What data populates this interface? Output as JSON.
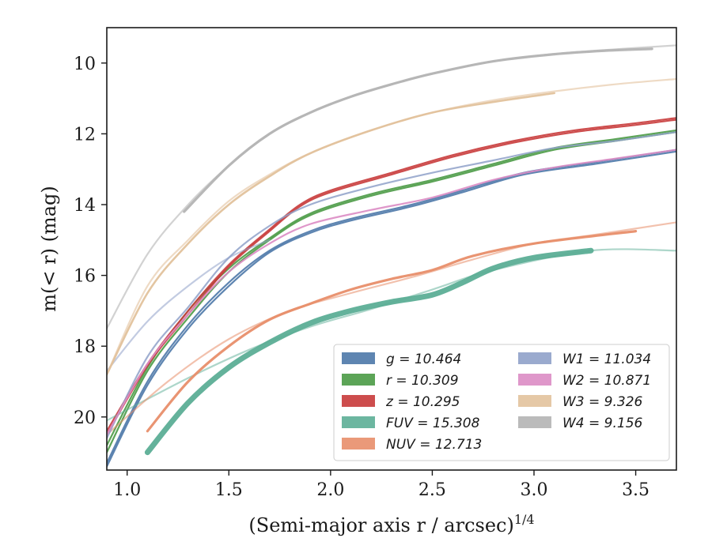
{
  "chart_data": {
    "type": "line",
    "xlabel": "(Semi-major axis r / arcsec)",
    "xlabel_super": "1/4",
    "ylabel": "m(< r) (mag)",
    "xlim": [
      0.9,
      3.7
    ],
    "ylim": [
      21.5,
      9.0
    ],
    "y_inverted": true,
    "grid": false,
    "legend_position": "lower-right",
    "xticks": [
      1.0,
      1.5,
      2.0,
      2.5,
      3.0,
      3.5
    ],
    "xtick_labels": [
      "1.0",
      "1.5",
      "2.0",
      "2.5",
      "3.0",
      "3.5"
    ],
    "yticks": [
      10,
      12,
      14,
      16,
      18,
      20
    ],
    "ytick_labels": [
      "10",
      "12",
      "14",
      "16",
      "18",
      "20"
    ],
    "series": [
      {
        "name": "g = 10.464",
        "legend_label": "g = 10.464",
        "color": "#4c78a8",
        "lines": [
          {
            "x": [
              0.9,
              1.1,
              1.3,
              1.5,
              1.7,
              1.9,
              2.1,
              2.4,
              2.65,
              2.95,
              3.3,
              3.7
            ],
            "y": [
              21.3,
              19.0,
              17.4,
              16.2,
              15.3,
              14.75,
              14.4,
              14.0,
              13.6,
              13.1,
              12.8,
              12.45
            ]
          },
          {
            "x": [
              0.9,
              1.1,
              1.3,
              1.5,
              1.7,
              1.9,
              2.1,
              2.4,
              2.65,
              2.95,
              3.3,
              3.7
            ],
            "y": [
              21.4,
              19.1,
              17.5,
              16.3,
              15.35,
              14.8,
              14.45,
              14.05,
              13.65,
              13.15,
              12.85,
              12.5
            ]
          }
        ]
      },
      {
        "name": "r = 10.309",
        "legend_label": "r = 10.309",
        "color": "#4a9a45",
        "lines": [
          {
            "x": [
              0.9,
              1.1,
              1.3,
              1.5,
              1.7,
              1.9,
              2.2,
              2.5,
              2.8,
              3.1,
              3.4,
              3.7
            ],
            "y": [
              21.0,
              18.7,
              17.2,
              15.9,
              15.0,
              14.3,
              13.75,
              13.35,
              12.9,
              12.45,
              12.2,
              11.95
            ]
          },
          {
            "x": [
              0.9,
              1.1,
              1.3,
              1.5,
              1.7,
              1.9,
              2.2,
              2.5,
              2.8,
              3.1,
              3.4,
              3.7
            ],
            "y": [
              20.8,
              18.6,
              17.0,
              15.8,
              14.95,
              14.25,
              13.7,
              13.3,
              12.85,
              12.4,
              12.15,
              11.9
            ]
          }
        ]
      },
      {
        "name": "z = 10.295",
        "legend_label": "z = 10.295",
        "color": "#c83a3a",
        "lines": [
          {
            "x": [
              0.9,
              1.1,
              1.3,
              1.5,
              1.7,
              1.85,
              2.0,
              2.3,
              2.6,
              2.9,
              3.2,
              3.5,
              3.7
            ],
            "y": [
              20.4,
              18.5,
              17.0,
              15.7,
              14.7,
              14.0,
              13.6,
              13.1,
              12.6,
              12.2,
              11.9,
              11.7,
              11.55
            ]
          },
          {
            "x": [
              0.9,
              1.1,
              1.3,
              1.5,
              1.7,
              1.85,
              2.0,
              2.3,
              2.6,
              2.9,
              3.2,
              3.5,
              3.7
            ],
            "y": [
              20.5,
              18.55,
              17.1,
              15.75,
              14.75,
              14.05,
              13.65,
              13.15,
              12.65,
              12.25,
              11.95,
              11.75,
              11.6
            ]
          }
        ]
      },
      {
        "name": "FUV = 15.308",
        "legend_label": "FUV = 15.308",
        "color": "#5cae96",
        "lines": [
          {
            "x": [
              1.1,
              1.3,
              1.5,
              1.7,
              1.9,
              2.1,
              2.3,
              2.5,
              2.65,
              2.8,
              3.0,
              3.28
            ],
            "y": [
              21.0,
              19.6,
              18.6,
              17.9,
              17.35,
              17.0,
              16.75,
              16.55,
              16.2,
              15.8,
              15.5,
              15.3
            ],
            "width": 7,
            "opacity": 0.95
          },
          {
            "x": [
              0.9,
              1.3,
              1.6,
              1.9,
              2.2,
              2.5,
              2.8,
              3.28,
              3.7
            ],
            "y": [
              20.1,
              18.9,
              18.1,
              17.45,
              16.95,
              16.4,
              15.85,
              15.3,
              15.3
            ],
            "width": 2.2,
            "opacity": 0.5
          }
        ]
      },
      {
        "name": "NUV = 12.713",
        "legend_label": "NUV = 12.713",
        "color": "#e88e6a",
        "lines": [
          {
            "x": [
              1.1,
              1.3,
              1.5,
              1.7,
              1.9,
              2.1,
              2.3,
              2.5,
              2.7,
              3.0,
              3.5
            ],
            "y": [
              20.4,
              19.0,
              18.0,
              17.25,
              16.8,
              16.4,
              16.1,
              15.85,
              15.45,
              15.1,
              14.75
            ],
            "width": 3.2,
            "opacity": 0.95
          },
          {
            "x": [
              0.9,
              1.2,
              1.5,
              1.8,
              2.1,
              2.4,
              2.7,
              3.0,
              3.3,
              3.7
            ],
            "y": [
              20.5,
              19.0,
              17.8,
              17.0,
              16.5,
              16.05,
              15.55,
              15.1,
              14.85,
              14.5
            ],
            "width": 2.2,
            "opacity": 0.55
          }
        ]
      },
      {
        "name": "W1 = 11.034",
        "legend_label": "W1 = 11.034",
        "color": "#8fa1c9",
        "lines": [
          {
            "x": [
              0.9,
              1.1,
              1.3,
              1.5,
              1.7,
              1.9,
              2.2,
              2.5,
              2.8,
              3.1,
              3.4,
              3.7
            ],
            "y": [
              20.6,
              18.3,
              16.9,
              15.5,
              14.6,
              14.0,
              13.5,
              13.1,
              12.75,
              12.4,
              12.2,
              11.95
            ],
            "width": 2.2,
            "opacity": 0.85
          },
          {
            "x": [
              0.9,
              1.1,
              1.3,
              1.5,
              1.7
            ],
            "y": [
              18.7,
              17.3,
              16.3,
              15.5,
              15.0
            ],
            "width": 2.2,
            "opacity": 0.55
          }
        ]
      },
      {
        "name": "W2 = 10.871",
        "legend_label": "W2 = 10.871",
        "color": "#dc8cc4",
        "lines": [
          {
            "x": [
              0.9,
              1.1,
              1.3,
              1.5,
              1.7,
              1.9,
              2.2,
              2.5,
              2.8,
              3.1,
              3.4,
              3.7
            ],
            "y": [
              20.5,
              18.5,
              17.1,
              15.9,
              15.1,
              14.55,
              14.15,
              13.8,
              13.3,
              12.95,
              12.7,
              12.45
            ],
            "width": 2.2,
            "opacity": 0.9
          }
        ]
      },
      {
        "name": "W3 = 9.326",
        "legend_label": "W3 = 9.326",
        "color": "#e2c29c",
        "lines": [
          {
            "x": [
              0.9,
              1.1,
              1.3,
              1.5,
              1.7,
              1.9,
              2.2,
              2.5,
              2.8,
              3.1
            ],
            "y": [
              18.8,
              16.5,
              15.1,
              14.0,
              13.2,
              12.55,
              11.9,
              11.4,
              11.1,
              10.85
            ],
            "width": 2.6,
            "opacity": 0.95
          },
          {
            "x": [
              0.9,
              1.1,
              1.3,
              1.5,
              1.7,
              1.9,
              2.2,
              2.5,
              2.8,
              3.1,
              3.4,
              3.7
            ],
            "y": [
              18.8,
              16.3,
              15.0,
              13.9,
              13.15,
              12.55,
              11.9,
              11.4,
              11.05,
              10.8,
              10.6,
              10.45
            ],
            "width": 2.2,
            "opacity": 0.6
          }
        ]
      },
      {
        "name": "W4 = 9.156",
        "legend_label": "W4 = 9.156",
        "color": "#b4b4b4",
        "lines": [
          {
            "x": [
              1.28,
              1.5,
              1.7,
              1.9,
              2.1,
              2.3,
              2.5,
              2.8,
              3.1,
              3.35,
              3.58
            ],
            "y": [
              14.2,
              12.9,
              12.0,
              11.4,
              10.95,
              10.6,
              10.3,
              9.95,
              9.75,
              9.65,
              9.6
            ],
            "width": 3.2,
            "opacity": 0.95
          },
          {
            "x": [
              0.9,
              1.1,
              1.3,
              1.5,
              1.7,
              1.9,
              2.1,
              2.4,
              2.7,
              3.0,
              3.3,
              3.7
            ],
            "y": [
              17.5,
              15.4,
              14.0,
              12.9,
              12.0,
              11.4,
              10.95,
              10.45,
              10.05,
              9.8,
              9.65,
              9.5
            ],
            "width": 2.2,
            "opacity": 0.6
          }
        ]
      }
    ]
  }
}
